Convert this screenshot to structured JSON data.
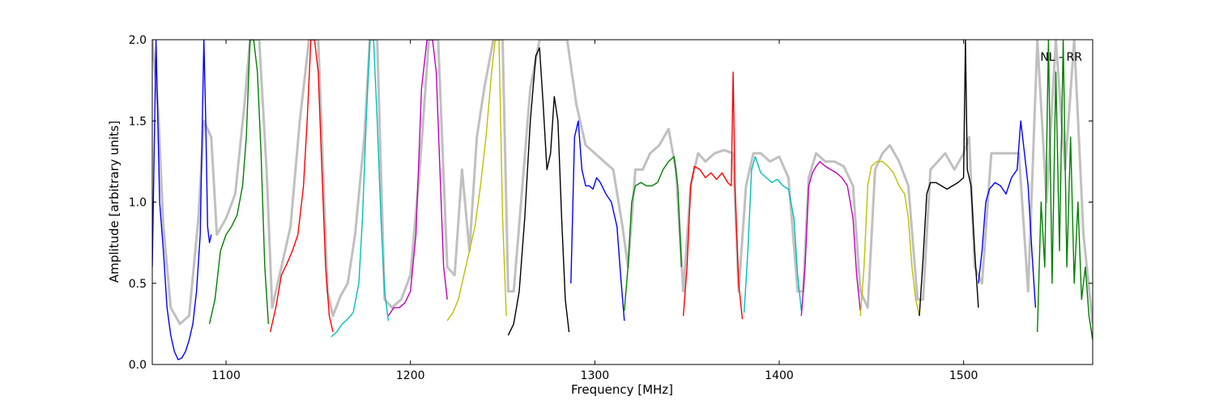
{
  "chart_data": {
    "type": "line",
    "title": "",
    "xlabel": "Frequency [MHz]",
    "ylabel": "Amplitude [arbitrary units]",
    "xlim": [
      1060,
      1570
    ],
    "ylim": [
      0.0,
      2.0
    ],
    "x_ticks": [
      "1100",
      "1200",
      "1300",
      "1400",
      "1500"
    ],
    "x_tick_values": [
      1100,
      1200,
      1300,
      1400,
      1500
    ],
    "y_ticks": [
      "0.0",
      "0.5",
      "1.0",
      "1.5",
      "2.0"
    ],
    "y_tick_values": [
      0.0,
      0.5,
      1.0,
      1.5,
      2.0
    ],
    "grid": false,
    "annotation": "NL - RR",
    "annotation_position": "top-right",
    "envelope_color": "#c0c0c0",
    "envelope": {
      "x": [
        1060,
        1063,
        1066,
        1070,
        1075,
        1080,
        1085,
        1088,
        1092,
        1095,
        1100,
        1105,
        1110,
        1113,
        1118,
        1122,
        1125,
        1130,
        1135,
        1140,
        1145,
        1150,
        1155,
        1158,
        1162,
        1166,
        1170,
        1175,
        1178,
        1182,
        1186,
        1190,
        1195,
        1200,
        1205,
        1210,
        1215,
        1220,
        1224,
        1228,
        1232,
        1236,
        1240,
        1245,
        1250,
        1253,
        1256,
        1260,
        1265,
        1270,
        1275,
        1280,
        1285,
        1290,
        1295,
        1300,
        1305,
        1310,
        1315,
        1318,
        1322,
        1326,
        1330,
        1335,
        1340,
        1344,
        1348,
        1352,
        1356,
        1360,
        1365,
        1370,
        1375,
        1378,
        1382,
        1386,
        1390,
        1395,
        1400,
        1405,
        1410,
        1413,
        1416,
        1420,
        1425,
        1430,
        1435,
        1440,
        1444,
        1448,
        1452,
        1456,
        1460,
        1465,
        1470,
        1475,
        1478,
        1482,
        1486,
        1490,
        1495,
        1500,
        1503,
        1506,
        1510,
        1515,
        1520,
        1525,
        1530,
        1535,
        1540,
        1545,
        1550,
        1555,
        1560,
        1565,
        1570
      ],
      "y": [
        2.0,
        1.6,
        0.85,
        0.35,
        0.25,
        0.3,
        0.9,
        1.5,
        1.4,
        0.8,
        0.9,
        1.05,
        1.6,
        2.0,
        2.0,
        1.2,
        0.35,
        0.6,
        0.85,
        1.5,
        2.0,
        2.0,
        0.45,
        0.3,
        0.42,
        0.5,
        0.8,
        1.4,
        2.0,
        2.0,
        0.4,
        0.35,
        0.4,
        0.55,
        1.2,
        2.0,
        2.0,
        0.6,
        0.55,
        1.2,
        0.7,
        1.4,
        1.7,
        2.0,
        2.0,
        0.45,
        0.45,
        1.0,
        1.7,
        2.0,
        2.0,
        2.0,
        2.0,
        1.6,
        1.35,
        1.3,
        1.25,
        1.2,
        0.85,
        0.6,
        1.2,
        1.2,
        1.3,
        1.35,
        1.45,
        1.2,
        0.45,
        1.1,
        1.3,
        1.25,
        1.3,
        1.32,
        1.3,
        0.45,
        1.1,
        1.3,
        1.3,
        1.25,
        1.28,
        1.15,
        0.45,
        0.45,
        1.15,
        1.3,
        1.25,
        1.25,
        1.22,
        1.1,
        0.45,
        0.35,
        1.2,
        1.3,
        1.35,
        1.25,
        1.1,
        0.4,
        0.4,
        1.2,
        1.25,
        1.3,
        1.2,
        1.3,
        1.4,
        0.6,
        0.5,
        1.3,
        1.3,
        1.3,
        1.3,
        0.45,
        2.0,
        1.0,
        2.0,
        1.2,
        2.0,
        0.8,
        0.25
      ]
    },
    "series": [
      {
        "color": "#0000ff",
        "x": [
          1060,
          1062,
          1064,
          1066,
          1068,
          1070,
          1072,
          1074,
          1076,
          1078,
          1080,
          1082,
          1084,
          1086,
          1088,
          1089,
          1090,
          1091,
          1092
        ],
        "y": [
          0.6,
          2.0,
          1.0,
          0.7,
          0.35,
          0.18,
          0.08,
          0.03,
          0.04,
          0.08,
          0.15,
          0.25,
          0.45,
          0.8,
          2.0,
          1.5,
          0.85,
          0.75,
          0.8
        ]
      },
      {
        "color": "#008000",
        "x": [
          1091,
          1094,
          1097,
          1100,
          1103,
          1106,
          1109,
          1111,
          1113,
          1115,
          1117,
          1119,
          1121,
          1123
        ],
        "y": [
          0.25,
          0.4,
          0.7,
          0.8,
          0.85,
          0.92,
          1.1,
          1.4,
          2.0,
          2.0,
          1.8,
          1.3,
          0.6,
          0.25
        ]
      },
      {
        "color": "#ff0000",
        "x": [
          1124,
          1127,
          1130,
          1133,
          1136,
          1139,
          1142,
          1144,
          1146,
          1148,
          1150,
          1152,
          1154,
          1156,
          1158
        ],
        "y": [
          0.2,
          0.35,
          0.55,
          0.62,
          0.7,
          0.8,
          1.1,
          1.5,
          2.0,
          2.0,
          1.8,
          1.2,
          0.6,
          0.3,
          0.2
        ]
      },
      {
        "color": "#00bfbf",
        "x": [
          1157,
          1160,
          1163,
          1166,
          1169,
          1172,
          1174,
          1176,
          1178,
          1180,
          1182,
          1184,
          1186,
          1188
        ],
        "y": [
          0.17,
          0.2,
          0.25,
          0.28,
          0.32,
          0.5,
          0.9,
          1.5,
          2.0,
          2.0,
          1.5,
          0.9,
          0.45,
          0.27
        ]
      },
      {
        "color": "#bf00bf",
        "x": [
          1188,
          1191,
          1194,
          1197,
          1200,
          1203,
          1206,
          1209,
          1212,
          1214,
          1216,
          1218,
          1220
        ],
        "y": [
          0.3,
          0.35,
          0.35,
          0.38,
          0.45,
          0.8,
          1.7,
          2.0,
          2.0,
          1.8,
          1.2,
          0.6,
          0.4
        ]
      },
      {
        "color": "#bfbf00",
        "x": [
          1220,
          1223,
          1226,
          1229,
          1232,
          1235,
          1238,
          1241,
          1244,
          1246,
          1248,
          1250,
          1252
        ],
        "y": [
          0.27,
          0.32,
          0.4,
          0.55,
          0.7,
          0.85,
          1.1,
          1.4,
          1.8,
          2.0,
          2.0,
          0.9,
          0.3
        ]
      },
      {
        "color": "#000000",
        "x": [
          1253,
          1256,
          1259,
          1262,
          1265,
          1268,
          1270,
          1272,
          1274,
          1276,
          1278,
          1280,
          1282,
          1284,
          1286
        ],
        "y": [
          0.18,
          0.25,
          0.45,
          0.9,
          1.5,
          1.9,
          1.95,
          1.6,
          1.2,
          1.3,
          1.65,
          1.5,
          0.9,
          0.4,
          0.2
        ]
      },
      {
        "color": "#0000ff",
        "x": [
          1287,
          1289,
          1291,
          1293,
          1295,
          1297,
          1299,
          1301,
          1303,
          1306,
          1309,
          1312,
          1314,
          1316
        ],
        "y": [
          0.5,
          1.4,
          1.5,
          1.2,
          1.1,
          1.1,
          1.08,
          1.15,
          1.12,
          1.05,
          1.0,
          0.85,
          0.55,
          0.27
        ]
      },
      {
        "color": "#008000",
        "x": [
          1316,
          1318,
          1320,
          1322,
          1325,
          1328,
          1331,
          1334,
          1337,
          1340,
          1343,
          1345,
          1347
        ],
        "y": [
          0.33,
          0.6,
          1.0,
          1.1,
          1.12,
          1.1,
          1.1,
          1.12,
          1.2,
          1.25,
          1.28,
          1.1,
          0.6
        ]
      },
      {
        "color": "#ff0000",
        "x": [
          1348,
          1350,
          1352,
          1354,
          1357,
          1360,
          1363,
          1366,
          1369,
          1372,
          1374,
          1375,
          1376,
          1377,
          1378,
          1380
        ],
        "y": [
          0.3,
          0.6,
          1.1,
          1.22,
          1.2,
          1.15,
          1.18,
          1.14,
          1.18,
          1.12,
          1.1,
          1.8,
          1.1,
          0.8,
          0.5,
          0.28
        ]
      },
      {
        "color": "#00bfbf",
        "x": [
          1381,
          1383,
          1385,
          1387,
          1390,
          1393,
          1396,
          1399,
          1402,
          1405,
          1408,
          1410,
          1412
        ],
        "y": [
          0.32,
          0.7,
          1.2,
          1.28,
          1.18,
          1.15,
          1.12,
          1.14,
          1.1,
          1.08,
          0.9,
          0.55,
          0.33
        ]
      },
      {
        "color": "#bf00bf",
        "x": [
          1412,
          1414,
          1416,
          1418,
          1420,
          1422,
          1425,
          1428,
          1431,
          1434,
          1437,
          1440,
          1442,
          1444
        ],
        "y": [
          0.3,
          0.6,
          1.1,
          1.18,
          1.22,
          1.25,
          1.22,
          1.2,
          1.18,
          1.15,
          1.1,
          0.9,
          0.55,
          0.33
        ]
      },
      {
        "color": "#bfbf00",
        "x": [
          1444,
          1446,
          1448,
          1450,
          1453,
          1456,
          1459,
          1462,
          1465,
          1468,
          1470,
          1472,
          1474,
          1476
        ],
        "y": [
          0.3,
          0.6,
          1.1,
          1.22,
          1.25,
          1.25,
          1.22,
          1.18,
          1.1,
          1.05,
          0.9,
          0.6,
          0.4,
          0.3
        ]
      },
      {
        "color": "#000000",
        "x": [
          1476,
          1478,
          1480,
          1482,
          1485,
          1488,
          1491,
          1494,
          1497,
          1500,
          1501,
          1502,
          1504,
          1506,
          1508
        ],
        "y": [
          0.3,
          0.65,
          1.05,
          1.12,
          1.12,
          1.1,
          1.08,
          1.1,
          1.12,
          1.15,
          2.0,
          1.2,
          1.1,
          0.7,
          0.35
        ]
      },
      {
        "color": "#0000ff",
        "x": [
          1508,
          1510,
          1512,
          1514,
          1517,
          1520,
          1523,
          1526,
          1529,
          1531,
          1533,
          1535,
          1537,
          1539
        ],
        "y": [
          0.5,
          0.7,
          1.0,
          1.08,
          1.12,
          1.1,
          1.05,
          1.15,
          1.2,
          1.5,
          1.3,
          1.1,
          0.7,
          0.35
        ]
      },
      {
        "color": "#008000",
        "x": [
          1540,
          1542,
          1544,
          1546,
          1548,
          1550,
          1552,
          1554,
          1556,
          1558,
          1560,
          1562,
          1564,
          1566,
          1568,
          1570
        ],
        "y": [
          0.2,
          1.0,
          0.6,
          2.0,
          0.5,
          1.8,
          0.7,
          2.0,
          0.6,
          1.4,
          0.5,
          1.0,
          0.4,
          0.6,
          0.3,
          0.15
        ]
      }
    ]
  }
}
